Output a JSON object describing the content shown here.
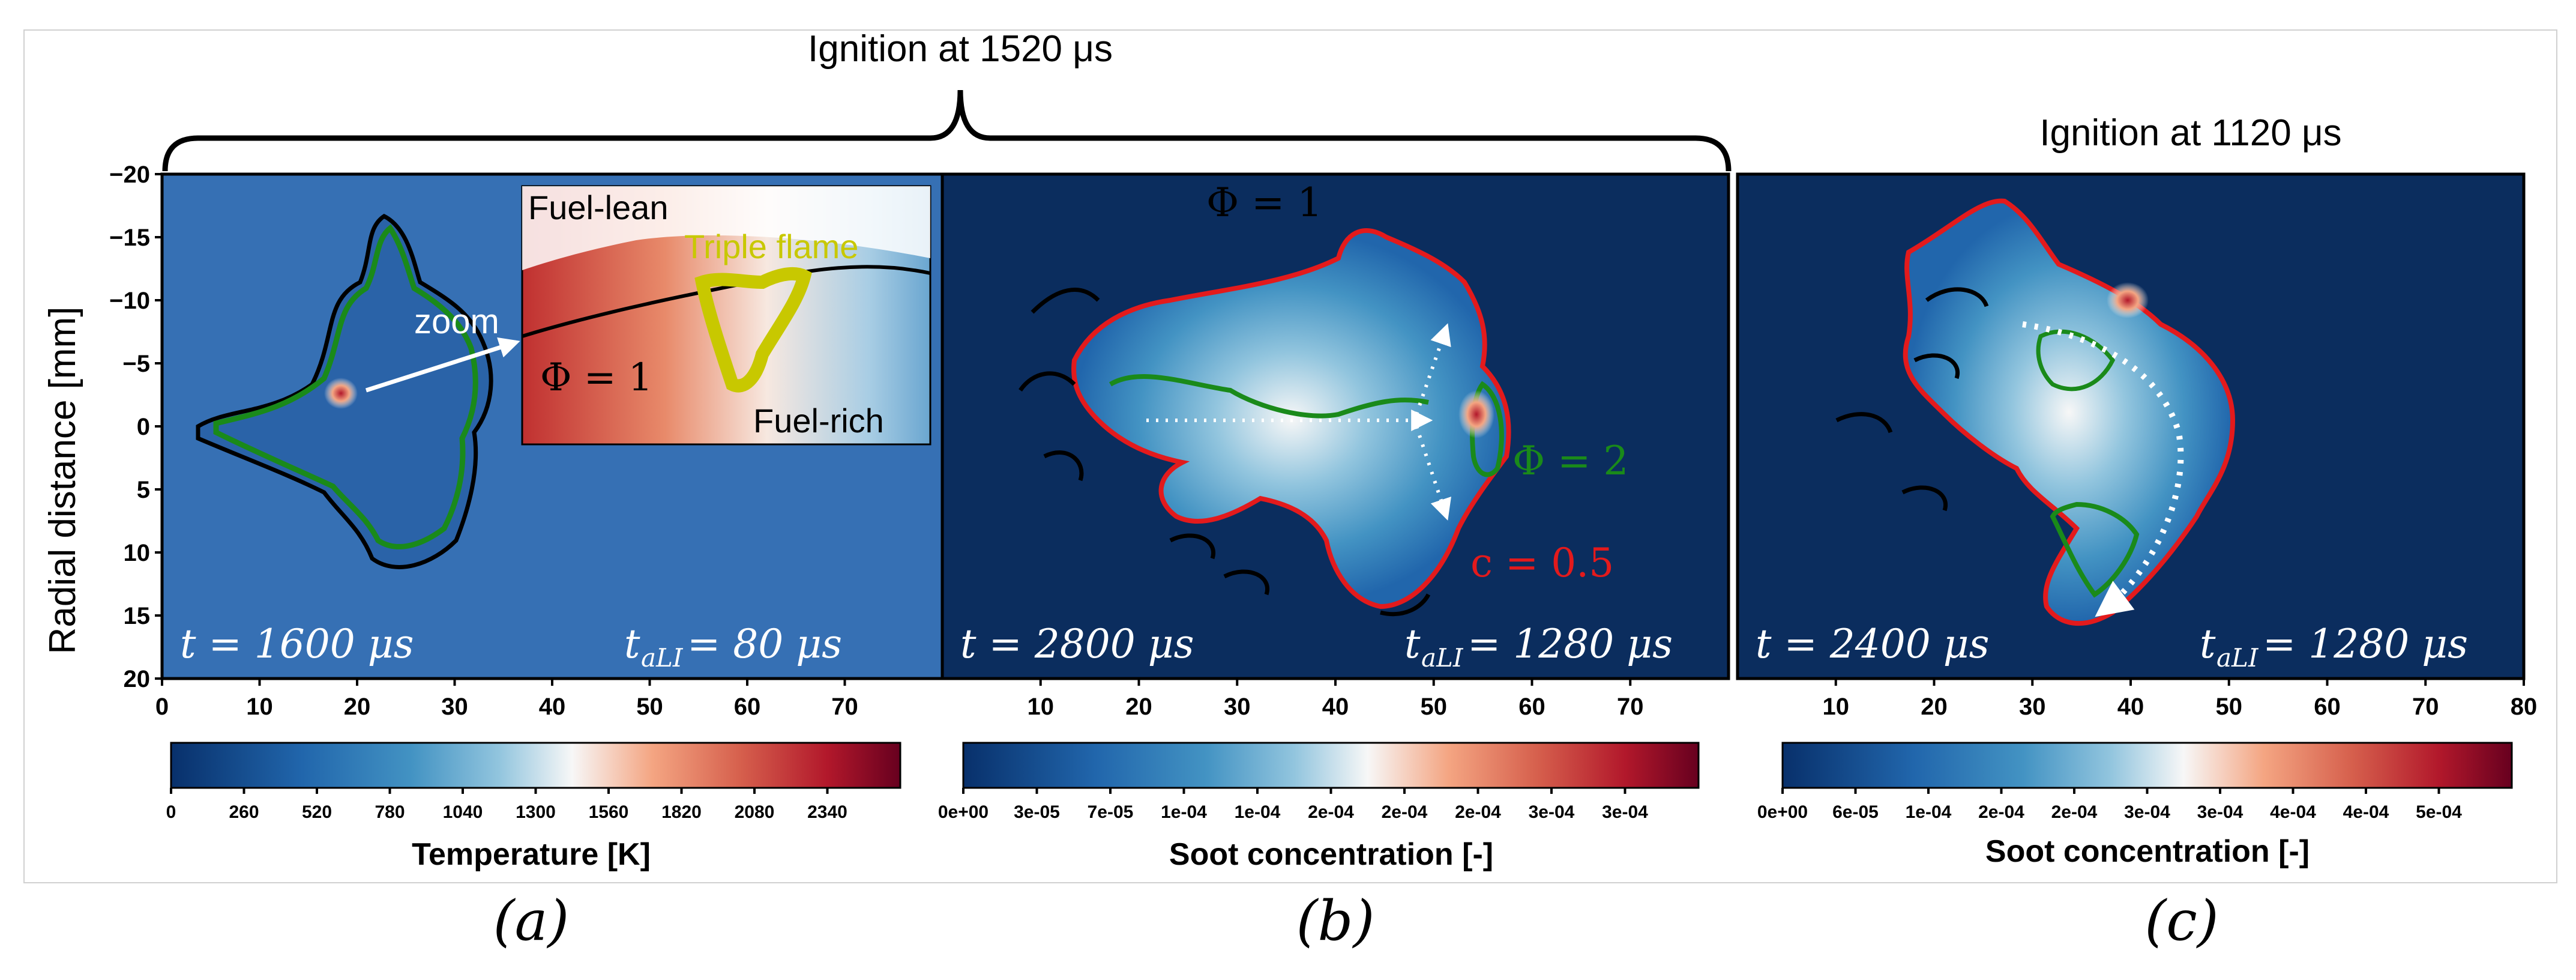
{
  "title_ab": "Ignition at 1520 μs",
  "title_c": "Ignition at 1120 μs",
  "y_axis_label": "Radial distance [mm]",
  "y_ticks": [
    "−20",
    "−15",
    "−10",
    "−5",
    "0",
    "5",
    "10",
    "15",
    "20"
  ],
  "colors": {
    "cmap": [
      "#08306b",
      "#2166ac",
      "#4393c3",
      "#92c5de",
      "#f7f7f7",
      "#f4a582",
      "#d6604d",
      "#b2182b",
      "#67001f"
    ],
    "contour_black": "#000000",
    "contour_green": "#1a8a1a",
    "contour_red": "#e31a1c",
    "triple_flame": "#c8c800",
    "bg_a": "#3670b4",
    "bg_bc": "#0b2d5e"
  },
  "panels": [
    {
      "id": "a",
      "caption": "(a)",
      "time_label": "t = 1600 μs",
      "taLI_label": "= 80 μs",
      "x_ticks": [
        "0",
        "10",
        "20",
        "30",
        "40",
        "50",
        "60",
        "70"
      ],
      "colorbar": {
        "title": "Temperature [K]",
        "ticks": [
          "0",
          "260",
          "520",
          "780",
          "1040",
          "1300",
          "1560",
          "1820",
          "2080",
          "2340"
        ]
      },
      "inset": {
        "fuel_lean": "Fuel-lean",
        "fuel_rich": "Fuel-rich",
        "triple_flame": "Triple flame",
        "phi": "Φ = 1",
        "zoom": "zoom"
      }
    },
    {
      "id": "b",
      "caption": "(b)",
      "time_label": "t = 2800 μs",
      "taLI_label": "= 1280 μs",
      "x_ticks": [
        "10",
        "20",
        "30",
        "40",
        "50",
        "60",
        "70"
      ],
      "annotations": {
        "phi1": "Φ = 1",
        "phi2": "Φ = 2",
        "c": "c = 0.5"
      },
      "colorbar": {
        "title": "Soot concentration [-]",
        "ticks": [
          "0e+00",
          "3e-05",
          "7e-05",
          "1e-04",
          "1e-04",
          "2e-04",
          "2e-04",
          "2e-04",
          "3e-04",
          "3e-04"
        ]
      }
    },
    {
      "id": "c",
      "caption": "(c)",
      "time_label": "t = 2400 μs",
      "taLI_label": "= 1280 μs",
      "x_ticks": [
        "10",
        "20",
        "30",
        "40",
        "50",
        "60",
        "70",
        "80"
      ],
      "colorbar": {
        "title": "Soot concentration [-]",
        "ticks": [
          "0e+00",
          "6e-05",
          "1e-04",
          "2e-04",
          "2e-04",
          "3e-04",
          "3e-04",
          "4e-04",
          "4e-04",
          "5e-04"
        ]
      }
    }
  ]
}
